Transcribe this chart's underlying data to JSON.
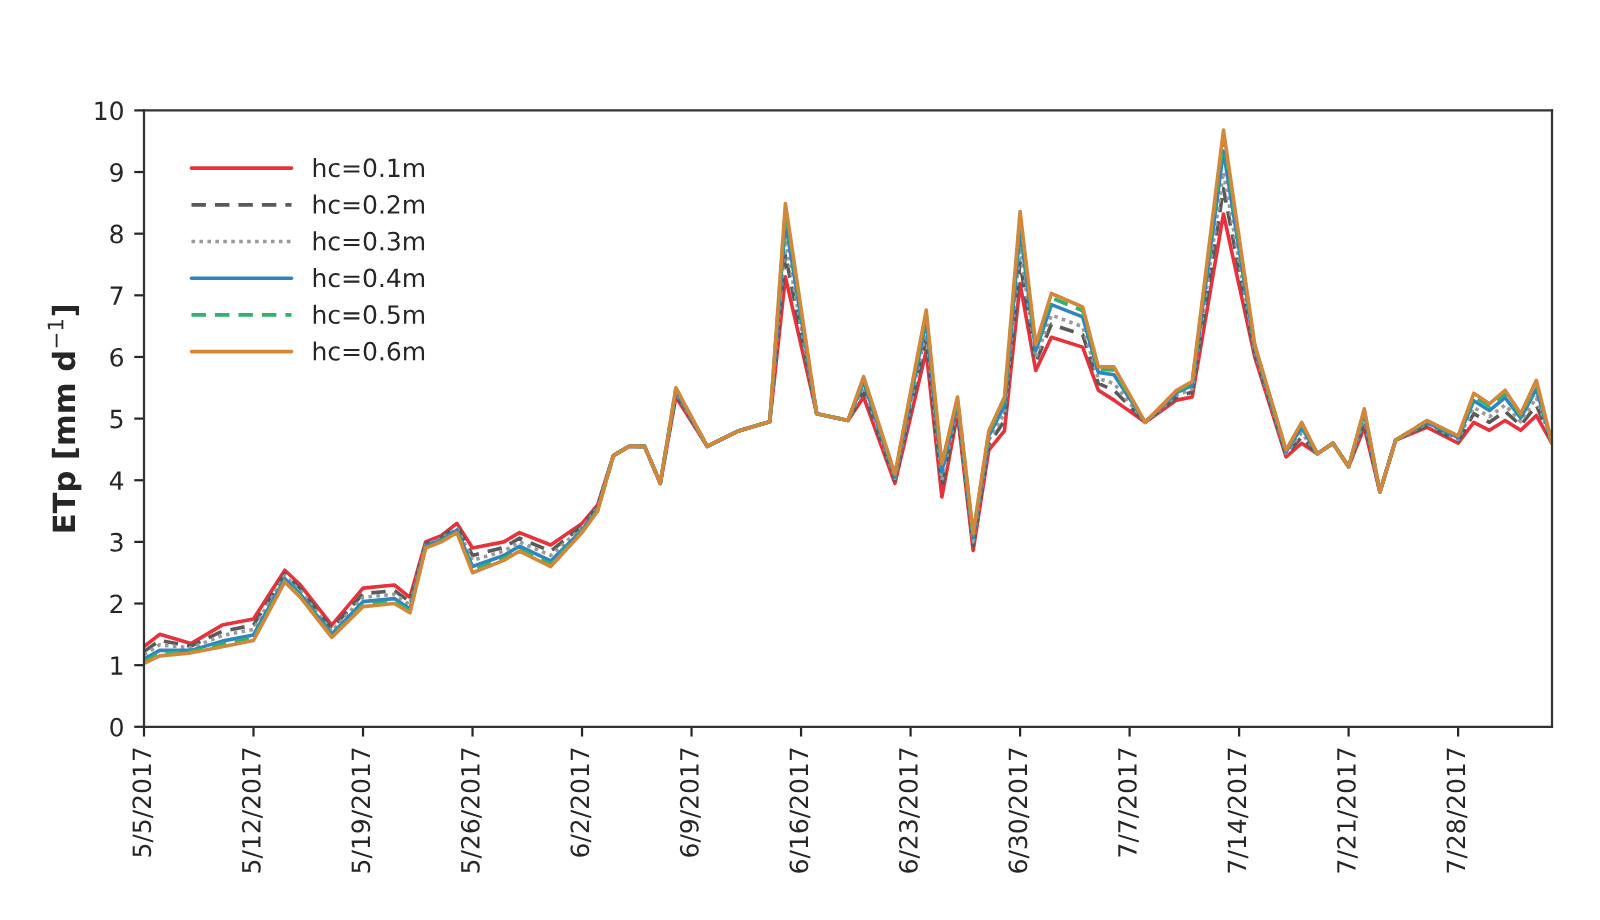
{
  "chart_data": {
    "type": "line",
    "ylabel": "ETp [mm d$^{−1}$]",
    "x": [
      "2017-05-05",
      "2017-05-06",
      "2017-05-08",
      "2017-05-10",
      "2017-05-12",
      "2017-05-14",
      "2017-05-15",
      "2017-05-17",
      "2017-05-19",
      "2017-05-21",
      "2017-05-22",
      "2017-05-23",
      "2017-05-24",
      "2017-05-25",
      "2017-05-26",
      "2017-05-28",
      "2017-05-29",
      "2017-05-31",
      "2017-06-02",
      "2017-06-03",
      "2017-06-04",
      "2017-06-05",
      "2017-06-06",
      "2017-06-07",
      "2017-06-08",
      "2017-06-10",
      "2017-06-12",
      "2017-06-14",
      "2017-06-15",
      "2017-06-17",
      "2017-06-19",
      "2017-06-20",
      "2017-06-22",
      "2017-06-24",
      "2017-06-25",
      "2017-06-26",
      "2017-06-27",
      "2017-06-28",
      "2017-06-29",
      "2017-06-30",
      "2017-07-01",
      "2017-07-02",
      "2017-07-04",
      "2017-07-05",
      "2017-07-06",
      "2017-07-08",
      "2017-07-10",
      "2017-07-11",
      "2017-07-13",
      "2017-07-15",
      "2017-07-17",
      "2017-07-18",
      "2017-07-19",
      "2017-07-20",
      "2017-07-21",
      "2017-07-22",
      "2017-07-23",
      "2017-07-24",
      "2017-07-26",
      "2017-07-28",
      "2017-07-29",
      "2017-07-30",
      "2017-07-31",
      "2017-08-01",
      "2017-08-02",
      "2017-08-03"
    ],
    "series": [
      {
        "name": "hc=0.1m",
        "color": "#e8313a",
        "line_style": "solid",
        "values": [
          1.3,
          1.5,
          1.35,
          1.65,
          1.75,
          2.54,
          2.3,
          1.65,
          2.25,
          2.3,
          2.1,
          3.0,
          3.1,
          3.3,
          2.9,
          3.0,
          3.15,
          2.95,
          3.3,
          3.6,
          4.4,
          4.55,
          4.55,
          3.95,
          5.35,
          4.55,
          4.8,
          4.95,
          7.3,
          5.08,
          4.97,
          5.35,
          3.95,
          6.1,
          3.73,
          5.08,
          2.86,
          4.49,
          4.8,
          7.19,
          5.78,
          6.32,
          6.16,
          5.46,
          5.3,
          4.94,
          5.3,
          5.35,
          8.32,
          6.0,
          4.38,
          4.6,
          4.43,
          4.6,
          4.22,
          4.86,
          3.81,
          4.65,
          4.86,
          4.6,
          4.94,
          4.81,
          4.97,
          4.81,
          5.05,
          4.6
        ]
      },
      {
        "name": "hc=0.2m",
        "color": "#5a5a5a",
        "line_style": "dashed",
        "values": [
          1.22,
          1.4,
          1.31,
          1.55,
          1.65,
          2.48,
          2.24,
          1.59,
          2.16,
          2.21,
          2.03,
          2.97,
          3.07,
          3.26,
          2.78,
          2.91,
          3.06,
          2.85,
          3.26,
          3.57,
          4.4,
          4.55,
          4.55,
          3.95,
          5.4,
          4.55,
          4.8,
          4.95,
          7.66,
          5.08,
          4.97,
          5.45,
          4.0,
          6.3,
          3.89,
          5.16,
          2.94,
          4.58,
          4.97,
          7.54,
          5.91,
          6.53,
          6.36,
          5.57,
          5.46,
          4.94,
          5.35,
          5.43,
          8.73,
          6.06,
          4.41,
          4.7,
          4.43,
          4.6,
          4.22,
          4.95,
          3.81,
          4.65,
          4.89,
          4.64,
          5.08,
          4.94,
          5.12,
          4.89,
          5.22,
          4.6
        ]
      },
      {
        "name": "hc=0.3m",
        "color": "#9a9a9a",
        "line_style": "dotted",
        "values": [
          1.17,
          1.33,
          1.28,
          1.48,
          1.58,
          2.45,
          2.2,
          1.55,
          2.1,
          2.15,
          1.98,
          2.95,
          3.05,
          3.23,
          2.7,
          2.85,
          3.0,
          2.78,
          3.23,
          3.55,
          4.4,
          4.55,
          4.55,
          3.95,
          5.43,
          4.55,
          4.8,
          4.95,
          7.9,
          5.08,
          4.97,
          5.52,
          4.03,
          6.43,
          4.0,
          5.22,
          3.0,
          4.65,
          5.08,
          7.78,
          5.99,
          6.68,
          6.49,
          5.65,
          5.57,
          4.94,
          5.38,
          5.48,
          9.0,
          6.1,
          4.44,
          4.77,
          4.43,
          4.6,
          4.22,
          5.01,
          3.81,
          4.65,
          4.92,
          4.66,
          5.18,
          5.03,
          5.22,
          4.95,
          5.34,
          4.6
        ]
      },
      {
        "name": "hc=0.4m",
        "color": "#2e86c1",
        "line_style": "solid",
        "values": [
          1.1,
          1.24,
          1.24,
          1.39,
          1.49,
          2.4,
          2.15,
          1.5,
          2.03,
          2.08,
          1.91,
          2.93,
          3.03,
          3.19,
          2.6,
          2.78,
          2.93,
          2.69,
          3.19,
          3.53,
          4.4,
          4.55,
          4.55,
          3.95,
          5.46,
          4.55,
          4.8,
          4.95,
          8.19,
          5.08,
          4.97,
          5.6,
          4.06,
          6.6,
          4.14,
          5.28,
          3.07,
          4.72,
          5.21,
          8.07,
          6.1,
          6.85,
          6.65,
          5.75,
          5.71,
          4.94,
          5.42,
          5.54,
          9.34,
          6.15,
          4.46,
          4.86,
          4.43,
          4.6,
          4.22,
          5.09,
          3.81,
          4.65,
          4.94,
          4.69,
          5.29,
          5.13,
          5.34,
          5.01,
          5.48,
          4.6
        ]
      },
      {
        "name": "hc=0.5m",
        "color": "#2fb36a",
        "line_style": "dashed",
        "values": [
          1.06,
          1.19,
          1.22,
          1.34,
          1.44,
          2.37,
          2.12,
          1.47,
          1.98,
          2.03,
          1.88,
          2.91,
          3.01,
          3.17,
          2.54,
          2.73,
          2.88,
          2.64,
          3.17,
          3.51,
          4.4,
          4.55,
          4.55,
          3.95,
          5.49,
          4.55,
          4.8,
          4.95,
          8.37,
          5.08,
          4.97,
          5.65,
          4.09,
          6.69,
          4.22,
          5.32,
          3.11,
          4.77,
          5.3,
          8.24,
          6.16,
          6.96,
          6.75,
          5.8,
          5.79,
          4.94,
          5.44,
          5.58,
          9.54,
          6.18,
          4.48,
          4.91,
          4.43,
          4.6,
          4.22,
          5.13,
          3.81,
          4.65,
          4.96,
          4.71,
          5.36,
          5.2,
          5.41,
          5.05,
          5.56,
          4.6
        ]
      },
      {
        "name": "hc=0.6m",
        "color": "#d2883a",
        "line_style": "solid",
        "values": [
          1.03,
          1.15,
          1.2,
          1.3,
          1.4,
          2.35,
          2.1,
          1.45,
          1.95,
          2.0,
          1.85,
          2.9,
          3.0,
          3.15,
          2.5,
          2.7,
          2.85,
          2.6,
          3.15,
          3.5,
          4.4,
          4.55,
          4.55,
          3.95,
          5.5,
          4.55,
          4.8,
          4.95,
          8.49,
          5.08,
          4.97,
          5.68,
          4.1,
          6.76,
          4.27,
          5.35,
          3.14,
          4.8,
          5.35,
          8.36,
          6.2,
          7.03,
          6.81,
          5.84,
          5.84,
          4.94,
          5.46,
          5.6,
          9.68,
          6.2,
          4.49,
          4.94,
          4.43,
          4.6,
          4.22,
          5.16,
          3.81,
          4.65,
          4.97,
          4.72,
          5.41,
          5.24,
          5.46,
          5.08,
          5.62,
          4.6
        ]
      }
    ],
    "xlim": [
      "2017-05-05",
      "2017-08-03"
    ],
    "xticks": [
      {
        "value": "2017-05-05",
        "label": "5/5/2017"
      },
      {
        "value": "2017-05-12",
        "label": "5/12/2017"
      },
      {
        "value": "2017-05-19",
        "label": "5/19/2017"
      },
      {
        "value": "2017-05-26",
        "label": "5/26/2017"
      },
      {
        "value": "2017-06-02",
        "label": "6/2/2017"
      },
      {
        "value": "2017-06-09",
        "label": "6/9/2017"
      },
      {
        "value": "2017-06-16",
        "label": "6/16/2017"
      },
      {
        "value": "2017-06-23",
        "label": "6/23/2017"
      },
      {
        "value": "2017-06-30",
        "label": "6/30/2017"
      },
      {
        "value": "2017-07-07",
        "label": "7/7/2017"
      },
      {
        "value": "2017-07-14",
        "label": "7/14/2017"
      },
      {
        "value": "2017-07-21",
        "label": "7/21/2017"
      },
      {
        "value": "2017-07-28",
        "label": "7/28/2017"
      }
    ],
    "ylim": [
      0,
      10
    ],
    "yticks": [
      0,
      1,
      2,
      3,
      4,
      5,
      6,
      7,
      8,
      9,
      10
    ],
    "legend": "top left",
    "grid": false,
    "marker": "none"
  }
}
